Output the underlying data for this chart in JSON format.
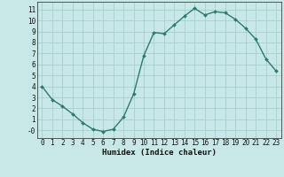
{
  "x": [
    0,
    1,
    2,
    3,
    4,
    5,
    6,
    7,
    8,
    9,
    10,
    11,
    12,
    13,
    14,
    15,
    16,
    17,
    18,
    19,
    20,
    21,
    22,
    23
  ],
  "y": [
    4.0,
    2.8,
    2.2,
    1.5,
    0.7,
    0.1,
    -0.1,
    0.1,
    1.2,
    3.3,
    6.8,
    8.9,
    8.8,
    9.6,
    10.4,
    11.1,
    10.5,
    10.8,
    10.7,
    10.1,
    9.3,
    8.3,
    6.5,
    5.4
  ],
  "xlabel": "Humidex (Indice chaleur)",
  "line_color": "#2d7a6e",
  "marker": "D",
  "marker_size": 2.0,
  "bg_color": "#c8e8e8",
  "grid_color": "#a8cece",
  "spine_color": "#555555",
  "ylim": [
    -0.7,
    11.7
  ],
  "xlim": [
    -0.5,
    23.5
  ],
  "yticks": [
    0,
    1,
    2,
    3,
    4,
    5,
    6,
    7,
    8,
    9,
    10,
    11
  ],
  "ytick_labels": [
    "-0",
    "1",
    "2",
    "3",
    "4",
    "5",
    "6",
    "7",
    "8",
    "9",
    "10",
    "11"
  ],
  "xticks": [
    0,
    1,
    2,
    3,
    4,
    5,
    6,
    7,
    8,
    9,
    10,
    11,
    12,
    13,
    14,
    15,
    16,
    17,
    18,
    19,
    20,
    21,
    22,
    23
  ],
  "tick_fontsize": 5.5,
  "xlabel_fontsize": 6.5,
  "linewidth": 1.0
}
